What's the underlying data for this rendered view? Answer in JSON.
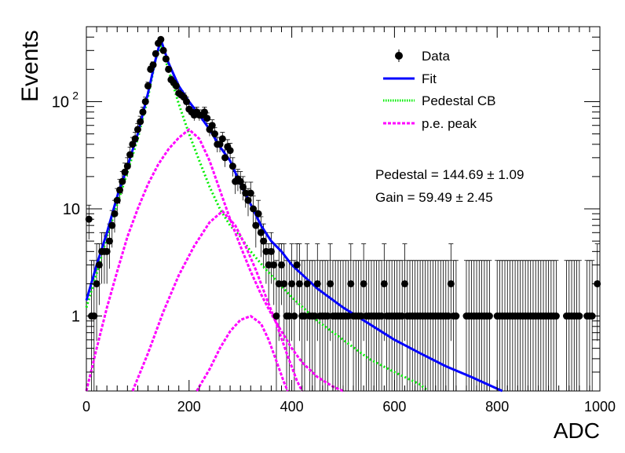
{
  "chart_data": {
    "type": "scatter",
    "xlabel": "ADC",
    "ylabel": "Events",
    "xlim": [
      0,
      1000
    ],
    "ylim": [
      0.2,
      500
    ],
    "y_scale": "log",
    "grid": false,
    "legend_position": "top-right",
    "x_ticks": [
      "0",
      "200",
      "400",
      "600",
      "800",
      "1000"
    ],
    "y_ticks": [
      {
        "value": 1,
        "base": "1",
        "exp": ""
      },
      {
        "value": 10,
        "base": "10",
        "exp": ""
      },
      {
        "value": 100,
        "base": "10",
        "exp": "2"
      }
    ],
    "legend": [
      {
        "label": "Data",
        "marker": "point",
        "color": "#000000"
      },
      {
        "label": "Fit",
        "marker": "solid-line",
        "color": "#0000ff"
      },
      {
        "label": "Pedestal CB",
        "marker": "dotted-line",
        "color": "#00ee00"
      },
      {
        "label": "p.e. peak",
        "marker": "dashed-line",
        "color": "#ff00ff"
      }
    ],
    "annotations": {
      "pedestal": "Pedestal = 144.69",
      "pedestal_err": "1.09",
      "gain": "Gain = 59.49",
      "gain_err": "2.45"
    },
    "fit_parameters": {
      "pedestal": 144.69,
      "pedestal_err": 1.09,
      "gain": 59.49,
      "gain_err": 2.45
    },
    "data_points": [
      [
        5,
        8
      ],
      [
        10,
        1
      ],
      [
        15,
        1
      ],
      [
        20,
        2
      ],
      [
        25,
        3
      ],
      [
        30,
        4
      ],
      [
        35,
        4
      ],
      [
        40,
        4
      ],
      [
        45,
        5
      ],
      [
        50,
        7
      ],
      [
        55,
        9
      ],
      [
        60,
        12
      ],
      [
        65,
        15
      ],
      [
        70,
        18
      ],
      [
        75,
        22
      ],
      [
        80,
        25
      ],
      [
        85,
        32
      ],
      [
        90,
        40
      ],
      [
        95,
        45
      ],
      [
        100,
        55
      ],
      [
        105,
        65
      ],
      [
        110,
        80
      ],
      [
        115,
        100
      ],
      [
        120,
        140
      ],
      [
        125,
        200
      ],
      [
        130,
        220
      ],
      [
        135,
        280
      ],
      [
        140,
        350
      ],
      [
        145,
        380
      ],
      [
        150,
        300
      ],
      [
        155,
        250
      ],
      [
        160,
        200
      ],
      [
        165,
        160
      ],
      [
        170,
        150
      ],
      [
        175,
        140
      ],
      [
        180,
        120
      ],
      [
        185,
        115
      ],
      [
        190,
        110
      ],
      [
        195,
        100
      ],
      [
        200,
        85
      ],
      [
        205,
        80
      ],
      [
        210,
        75
      ],
      [
        215,
        80
      ],
      [
        220,
        75
      ],
      [
        225,
        75
      ],
      [
        230,
        80
      ],
      [
        235,
        70
      ],
      [
        240,
        55
      ],
      [
        245,
        60
      ],
      [
        250,
        50
      ],
      [
        255,
        40
      ],
      [
        260,
        40
      ],
      [
        265,
        45
      ],
      [
        270,
        30
      ],
      [
        275,
        38
      ],
      [
        280,
        35
      ],
      [
        285,
        25
      ],
      [
        290,
        18
      ],
      [
        295,
        19
      ],
      [
        300,
        18
      ],
      [
        305,
        16
      ],
      [
        310,
        14
      ],
      [
        315,
        12
      ],
      [
        320,
        14
      ],
      [
        325,
        10
      ],
      [
        330,
        7
      ],
      [
        335,
        9
      ],
      [
        340,
        6
      ],
      [
        345,
        5
      ],
      [
        350,
        4
      ],
      [
        355,
        3
      ],
      [
        360,
        4
      ],
      [
        365,
        3
      ],
      [
        370,
        1
      ],
      [
        375,
        2
      ],
      [
        380,
        3
      ],
      [
        385,
        2
      ],
      [
        390,
        1
      ],
      [
        395,
        1
      ],
      [
        400,
        2
      ],
      [
        405,
        1
      ],
      [
        410,
        3
      ],
      [
        415,
        2
      ],
      [
        420,
        1
      ],
      [
        425,
        1
      ],
      [
        430,
        2
      ],
      [
        435,
        1
      ],
      [
        440,
        1
      ],
      [
        445,
        1
      ],
      [
        450,
        2
      ],
      [
        455,
        1
      ],
      [
        460,
        1
      ],
      [
        465,
        1
      ],
      [
        470,
        1
      ],
      [
        475,
        2
      ],
      [
        480,
        1
      ],
      [
        485,
        1
      ],
      [
        490,
        1
      ],
      [
        495,
        1
      ],
      [
        500,
        1
      ],
      [
        505,
        1
      ],
      [
        510,
        1
      ],
      [
        515,
        2
      ],
      [
        520,
        1
      ],
      [
        525,
        1
      ],
      [
        530,
        1
      ],
      [
        535,
        1
      ],
      [
        540,
        2
      ],
      [
        545,
        1
      ],
      [
        550,
        1
      ],
      [
        555,
        1
      ],
      [
        560,
        1
      ],
      [
        565,
        1
      ],
      [
        570,
        1
      ],
      [
        575,
        1
      ],
      [
        580,
        2
      ],
      [
        585,
        1
      ],
      [
        590,
        1
      ],
      [
        595,
        1
      ],
      [
        600,
        1
      ],
      [
        605,
        1
      ],
      [
        610,
        1
      ],
      [
        615,
        1
      ],
      [
        620,
        2
      ],
      [
        625,
        1
      ],
      [
        630,
        1
      ],
      [
        635,
        1
      ],
      [
        640,
        1
      ],
      [
        645,
        1
      ],
      [
        650,
        1
      ],
      [
        655,
        1
      ],
      [
        660,
        1
      ],
      [
        665,
        1
      ],
      [
        670,
        1
      ],
      [
        675,
        1
      ],
      [
        680,
        1
      ],
      [
        685,
        1
      ],
      [
        690,
        1
      ],
      [
        695,
        1
      ],
      [
        700,
        1
      ],
      [
        705,
        1
      ],
      [
        710,
        2
      ],
      [
        715,
        1
      ],
      [
        720,
        1
      ],
      [
        740,
        1
      ],
      [
        745,
        1
      ],
      [
        750,
        1
      ],
      [
        755,
        1
      ],
      [
        760,
        1
      ],
      [
        765,
        1
      ],
      [
        770,
        1
      ],
      [
        775,
        1
      ],
      [
        780,
        1
      ],
      [
        785,
        1
      ],
      [
        800,
        1
      ],
      [
        805,
        1
      ],
      [
        810,
        1
      ],
      [
        815,
        1
      ],
      [
        820,
        1
      ],
      [
        825,
        1
      ],
      [
        830,
        1
      ],
      [
        835,
        1
      ],
      [
        840,
        1
      ],
      [
        845,
        1
      ],
      [
        850,
        1
      ],
      [
        855,
        1
      ],
      [
        860,
        1
      ],
      [
        865,
        1
      ],
      [
        870,
        1
      ],
      [
        875,
        1
      ],
      [
        880,
        1
      ],
      [
        885,
        1
      ],
      [
        890,
        1
      ],
      [
        895,
        1
      ],
      [
        900,
        1
      ],
      [
        905,
        1
      ],
      [
        910,
        1
      ],
      [
        915,
        1
      ],
      [
        935,
        1
      ],
      [
        940,
        1
      ],
      [
        945,
        1
      ],
      [
        950,
        1
      ],
      [
        955,
        1
      ],
      [
        960,
        1
      ],
      [
        975,
        1
      ],
      [
        980,
        1
      ],
      [
        985,
        1
      ],
      [
        995,
        2
      ]
    ],
    "series": [
      {
        "name": "Fit",
        "color": "#0000ff",
        "points": [
          [
            0,
            1.4
          ],
          [
            20,
            3
          ],
          [
            40,
            6
          ],
          [
            60,
            13
          ],
          [
            80,
            25
          ],
          [
            100,
            50
          ],
          [
            120,
            120
          ],
          [
            135,
            250
          ],
          [
            145,
            380
          ],
          [
            160,
            230
          ],
          [
            180,
            140
          ],
          [
            200,
            100
          ],
          [
            220,
            75
          ],
          [
            240,
            55
          ],
          [
            260,
            38
          ],
          [
            280,
            28
          ],
          [
            300,
            17
          ],
          [
            320,
            11
          ],
          [
            340,
            7
          ],
          [
            360,
            5
          ],
          [
            380,
            4
          ],
          [
            400,
            3
          ],
          [
            450,
            1.8
          ],
          [
            500,
            1.2
          ],
          [
            550,
            0.85
          ],
          [
            600,
            0.6
          ],
          [
            650,
            0.45
          ],
          [
            700,
            0.34
          ],
          [
            750,
            0.27
          ],
          [
            800,
            0.21
          ],
          [
            810,
            0.2
          ]
        ]
      },
      {
        "name": "Pedestal CB",
        "color": "#00ee00",
        "points": [
          [
            0,
            1.2
          ],
          [
            20,
            2.5
          ],
          [
            40,
            5.5
          ],
          [
            60,
            11
          ],
          [
            80,
            22
          ],
          [
            100,
            45
          ],
          [
            120,
            110
          ],
          [
            135,
            250
          ],
          [
            145,
            330
          ],
          [
            160,
            200
          ],
          [
            180,
            95
          ],
          [
            200,
            50
          ],
          [
            220,
            28
          ],
          [
            240,
            16
          ],
          [
            260,
            10
          ],
          [
            280,
            7
          ],
          [
            300,
            5.5
          ],
          [
            320,
            4
          ],
          [
            350,
            2.7
          ],
          [
            400,
            1.5
          ],
          [
            450,
            0.9
          ],
          [
            500,
            0.6
          ],
          [
            550,
            0.4
          ],
          [
            600,
            0.3
          ],
          [
            650,
            0.23
          ],
          [
            665,
            0.2
          ]
        ]
      },
      {
        "name": "p.e. peak",
        "color": "#ff00ff",
        "points": [
          [
            0,
            0.2
          ],
          [
            20,
            0.5
          ],
          [
            40,
            1.2
          ],
          [
            60,
            2.6
          ],
          [
            80,
            5.5
          ],
          [
            100,
            10
          ],
          [
            120,
            17
          ],
          [
            140,
            26
          ],
          [
            160,
            36
          ],
          [
            180,
            46
          ],
          [
            200,
            55
          ],
          [
            220,
            45
          ],
          [
            240,
            28
          ],
          [
            260,
            15
          ],
          [
            280,
            8
          ],
          [
            300,
            4.5
          ],
          [
            320,
            2.6
          ],
          [
            340,
            1.6
          ],
          [
            360,
            1.05
          ],
          [
            380,
            0.72
          ],
          [
            400,
            0.5
          ],
          [
            420,
            0.37
          ],
          [
            450,
            0.27
          ],
          [
            480,
            0.22
          ],
          [
            500,
            0.2
          ]
        ]
      },
      {
        "name": "p.e. peak",
        "color": "#ff00ff",
        "points": [
          [
            90,
            0.2
          ],
          [
            120,
            0.45
          ],
          [
            150,
            1.1
          ],
          [
            180,
            2.4
          ],
          [
            210,
            4.5
          ],
          [
            240,
            7.5
          ],
          [
            265,
            9.5
          ],
          [
            290,
            7
          ],
          [
            310,
            4.5
          ],
          [
            330,
            2.7
          ],
          [
            350,
            1.5
          ],
          [
            370,
            0.85
          ],
          [
            390,
            0.45
          ],
          [
            410,
            0.25
          ],
          [
            420,
            0.2
          ]
        ]
      },
      {
        "name": "p.e. peak",
        "color": "#ff00ff",
        "points": [
          [
            215,
            0.2
          ],
          [
            240,
            0.32
          ],
          [
            260,
            0.5
          ],
          [
            280,
            0.72
          ],
          [
            300,
            0.92
          ],
          [
            320,
            1.0
          ],
          [
            340,
            0.85
          ],
          [
            355,
            0.6
          ],
          [
            370,
            0.38
          ],
          [
            385,
            0.24
          ],
          [
            392,
            0.2
          ]
        ]
      }
    ]
  }
}
